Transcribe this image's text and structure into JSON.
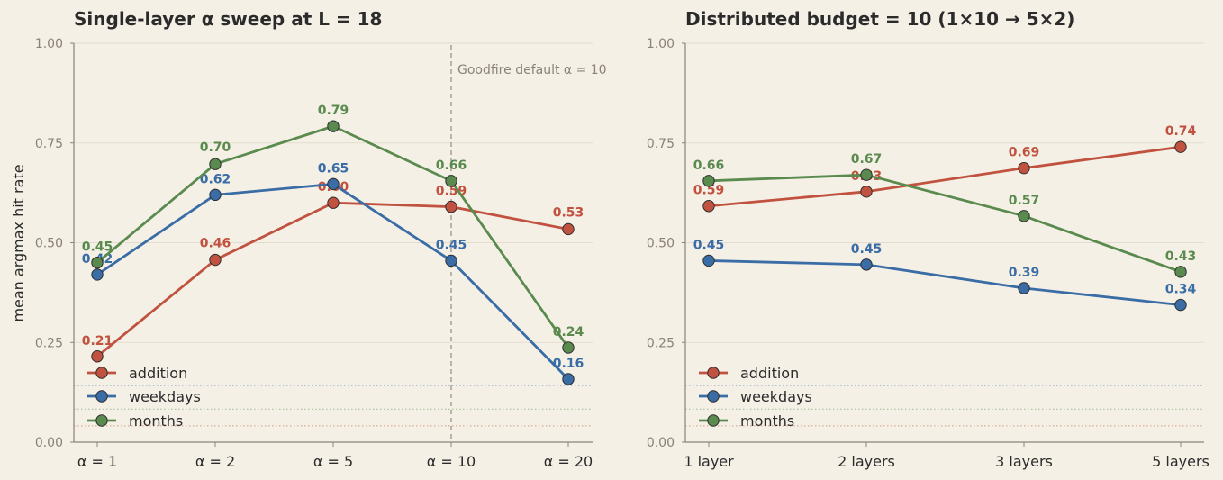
{
  "colors": {
    "addition": "#c0523f",
    "weekdays": "#3a6ca5",
    "months": "#5a8a4e",
    "background": "#f5f0e6",
    "grid": "#e4ddcf",
    "axis": "#8a8278"
  },
  "ylabel": "mean argmax hit rate",
  "chart_data": [
    {
      "type": "line",
      "title": "Single-layer α sweep at L = 18",
      "categories": [
        "α = 1",
        "α = 2",
        "α = 5",
        "α = 10",
        "α = 20"
      ],
      "ylim": [
        0,
        1
      ],
      "yticks": [
        "0.00",
        "0.25",
        "0.50",
        "0.75",
        "1.00"
      ],
      "grid": true,
      "legend_position": "lower-left",
      "series": [
        {
          "name": "addition",
          "color": "#c0523f",
          "values": [
            0.215,
            0.457,
            0.6,
            0.59,
            0.534
          ],
          "labels": [
            "0.21",
            "0.46",
            "0.60",
            "0.59",
            "0.53"
          ]
        },
        {
          "name": "weekdays",
          "color": "#3a6ca5",
          "values": [
            0.42,
            0.62,
            0.647,
            0.455,
            0.158
          ],
          "labels": [
            "0.42",
            "0.62",
            "0.65",
            "0.45",
            "0.16"
          ]
        },
        {
          "name": "months",
          "color": "#5a8a4e",
          "values": [
            0.45,
            0.697,
            0.792,
            0.655,
            0.237
          ],
          "labels": [
            "0.45",
            "0.70",
            "0.79",
            "0.66",
            "0.24"
          ]
        }
      ],
      "annotation": {
        "text": "Goodfire default  α = 10",
        "category_index": 3
      },
      "baselines": [
        0.142,
        0.083,
        0.041
      ]
    },
    {
      "type": "line",
      "title": "Distributed budget = 10  (1×10  →  5×2)",
      "categories": [
        "1 layer",
        "2 layers",
        "3 layers",
        "5 layers"
      ],
      "ylim": [
        0,
        1
      ],
      "yticks": [
        "0.00",
        "0.25",
        "0.50",
        "0.75",
        "1.00"
      ],
      "grid": true,
      "legend_position": "lower-left",
      "series": [
        {
          "name": "addition",
          "color": "#c0523f",
          "values": [
            0.592,
            0.628,
            0.687,
            0.74
          ],
          "labels": [
            "0.59",
            "0.63",
            "0.69",
            "0.74"
          ]
        },
        {
          "name": "weekdays",
          "color": "#3a6ca5",
          "values": [
            0.455,
            0.445,
            0.386,
            0.344
          ],
          "labels": [
            "0.45",
            "0.45",
            "0.39",
            "0.34"
          ]
        },
        {
          "name": "months",
          "color": "#5a8a4e",
          "values": [
            0.655,
            0.67,
            0.567,
            0.427
          ],
          "labels": [
            "0.66",
            "0.67",
            "0.57",
            "0.43"
          ]
        }
      ],
      "baselines": [
        0.142,
        0.083,
        0.041
      ]
    }
  ]
}
